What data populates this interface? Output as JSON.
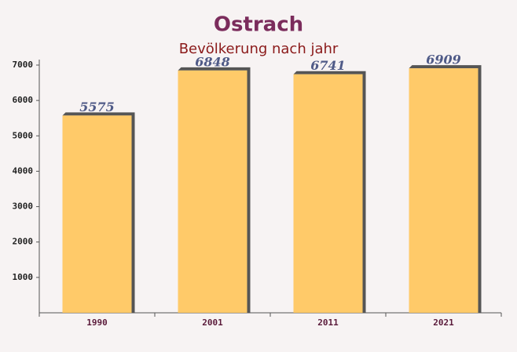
{
  "chart_data": {
    "type": "bar",
    "title": "Ostrach",
    "subtitle": "Bevölkerung nach jahr",
    "categories": [
      "1990",
      "2001",
      "2011",
      "2021"
    ],
    "values": [
      5575,
      6848,
      6741,
      6909
    ],
    "color": "#ffc55a",
    "ylim": [
      0,
      7000
    ],
    "yticks": [
      1000,
      2000,
      3000,
      4000,
      5000,
      6000,
      7000
    ]
  }
}
